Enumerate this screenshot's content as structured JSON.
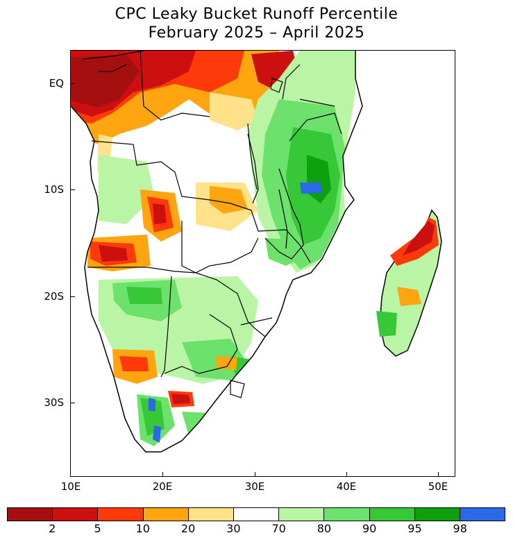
{
  "title": {
    "line1": "CPC Leaky Bucket Runoff Percentile",
    "line2": "February 2025 – April 2025"
  },
  "axes": {
    "lon_labels": [
      "10E",
      "20E",
      "30E",
      "40E",
      "50E"
    ],
    "lat_labels": [
      "EQ",
      "10S",
      "20S",
      "30S"
    ],
    "lon_range": [
      10,
      52
    ],
    "lat_range": [
      -37,
      3
    ]
  },
  "legend": {
    "colors": [
      "#a50f0f",
      "#cc0f0f",
      "#ff3a0a",
      "#ffa510",
      "#ffe28a",
      "#ffffff",
      "#b9f5a5",
      "#6ce26c",
      "#36c836",
      "#0ea00e",
      "#2a6ae6"
    ],
    "labels": [
      "2",
      "5",
      "10",
      "20",
      "30",
      "70",
      "80",
      "90",
      "95",
      "98"
    ]
  }
}
